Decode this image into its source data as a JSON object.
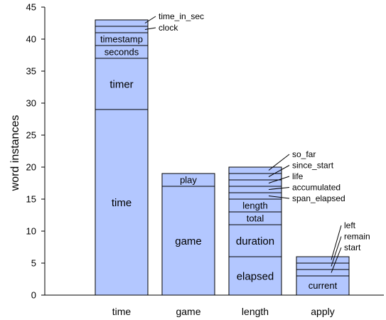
{
  "chart_data": {
    "type": "bar",
    "stacked": true,
    "title": "",
    "xlabel": "",
    "ylabel": "word instances",
    "ylim": [
      0,
      45
    ],
    "yticks": [
      0,
      5,
      10,
      15,
      20,
      25,
      30,
      35,
      40,
      45
    ],
    "bar_color": "#b3c7ff",
    "edge_color": "#000000",
    "categories": [
      "time",
      "game",
      "length",
      "apply"
    ],
    "stacks": [
      {
        "category": "time",
        "segments": [
          {
            "label": "time",
            "value": 29
          },
          {
            "label": "timer",
            "value": 8
          },
          {
            "label": "seconds",
            "value": 2
          },
          {
            "label": "timestamp",
            "value": 2
          },
          {
            "label": "clock",
            "value": 1
          },
          {
            "label": "time_in_sec",
            "value": 1
          }
        ]
      },
      {
        "category": "game",
        "segments": [
          {
            "label": "game",
            "value": 17
          },
          {
            "label": "play",
            "value": 2
          }
        ]
      },
      {
        "category": "length",
        "segments": [
          {
            "label": "elapsed",
            "value": 6
          },
          {
            "label": "duration",
            "value": 5
          },
          {
            "label": "total",
            "value": 2
          },
          {
            "label": "length",
            "value": 2
          },
          {
            "label": "span_elapsed",
            "value": 1
          },
          {
            "label": "accumulated",
            "value": 1
          },
          {
            "label": "life",
            "value": 1
          },
          {
            "label": "since_start",
            "value": 1
          },
          {
            "label": "so_far",
            "value": 1
          }
        ]
      },
      {
        "category": "apply",
        "segments": [
          {
            "label": "current",
            "value": 3
          },
          {
            "label": "start",
            "value": 1
          },
          {
            "label": "remain",
            "value": 1
          },
          {
            "label": "left",
            "value": 1
          }
        ]
      }
    ],
    "grid": false,
    "legend": "none"
  }
}
